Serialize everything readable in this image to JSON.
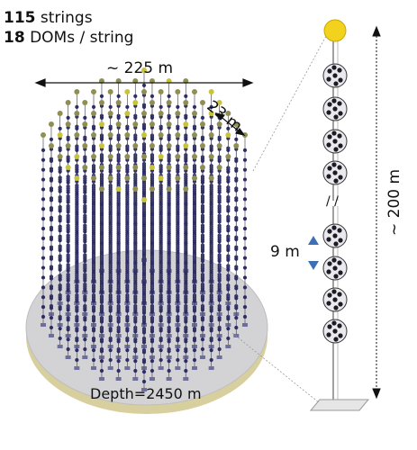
{
  "stats": {
    "strings_count": "115",
    "strings_label": "strings",
    "doms_count": "18",
    "doms_label": "DOMs / string"
  },
  "dimensions": {
    "width_label": "~ 225 m",
    "spacing_label": "23 m",
    "height_label": "~ 200 m",
    "dom_spacing_label": "9 m",
    "depth_label": "Depth=2450 m",
    "break_mark": "/ /"
  },
  "colors": {
    "base_disk": "#d3d3d6",
    "base_rim": "#d8cf9f",
    "string_line": "#4f4f6a",
    "dom_dot": "#2e2e64",
    "buoy": "#c8c43a",
    "arrow_blue": "#3c6fb4",
    "zoom_lines": "#888888"
  },
  "icons": [
    "buoy-icon",
    "dom-icon",
    "anchor-icon",
    "dimension-arrow-icon"
  ]
}
